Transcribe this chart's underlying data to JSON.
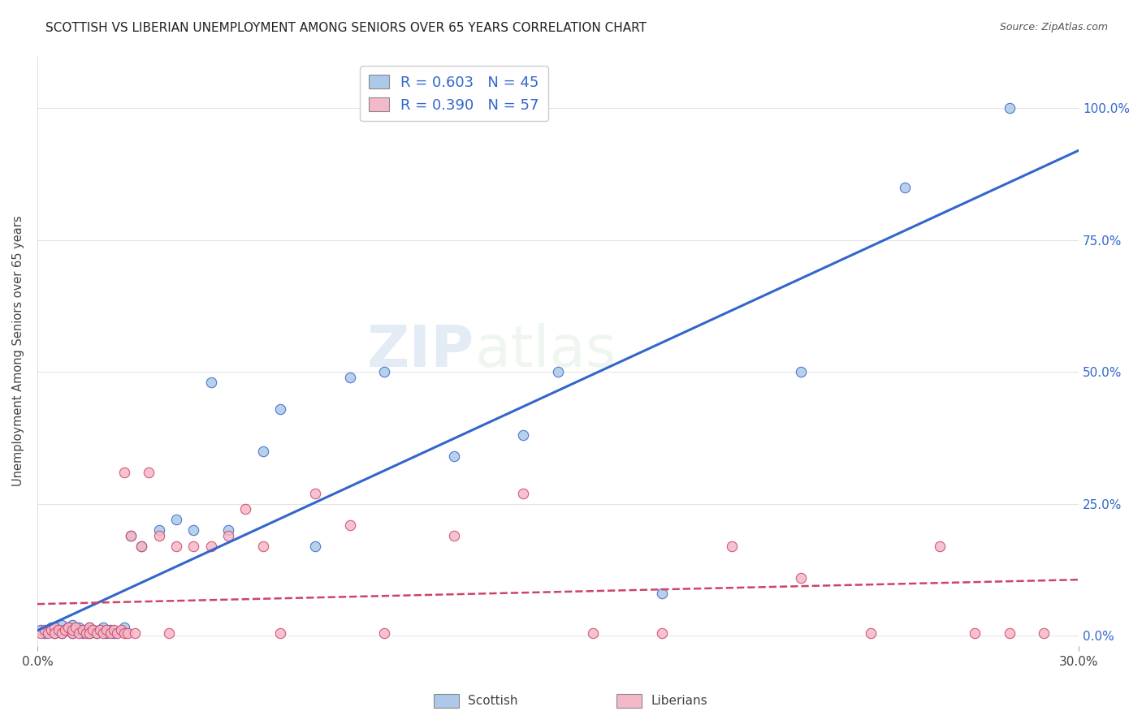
{
  "title": "SCOTTISH VS LIBERIAN UNEMPLOYMENT AMONG SENIORS OVER 65 YEARS CORRELATION CHART",
  "source": "Source: ZipAtlas.com",
  "ylabel_label": "Unemployment Among Seniors over 65 years",
  "xlim": [
    0.0,
    0.3
  ],
  "ylim": [
    -0.02,
    1.1
  ],
  "scottish_R": 0.603,
  "scottish_N": 45,
  "liberian_R": 0.39,
  "liberian_N": 57,
  "scottish_color": "#adc8e8",
  "liberian_color": "#f5b8c8",
  "scottish_line_color": "#3366cc",
  "liberian_line_color": "#cc4466",
  "r_n_color": "#3366cc",
  "background_color": "#ffffff",
  "watermark_zip": "ZIP",
  "watermark_atlas": "atlas",
  "scottish_x": [
    0.001,
    0.002,
    0.003,
    0.004,
    0.005,
    0.006,
    0.007,
    0.007,
    0.008,
    0.009,
    0.01,
    0.01,
    0.011,
    0.012,
    0.013,
    0.014,
    0.015,
    0.015,
    0.016,
    0.017,
    0.018,
    0.019,
    0.02,
    0.021,
    0.022,
    0.025,
    0.027,
    0.03,
    0.035,
    0.04,
    0.045,
    0.05,
    0.055,
    0.065,
    0.07,
    0.08,
    0.09,
    0.1,
    0.12,
    0.14,
    0.15,
    0.18,
    0.22,
    0.25,
    0.28
  ],
  "scottish_y": [
    0.01,
    0.005,
    0.01,
    0.015,
    0.005,
    0.01,
    0.02,
    0.005,
    0.01,
    0.015,
    0.005,
    0.02,
    0.01,
    0.015,
    0.005,
    0.01,
    0.015,
    0.005,
    0.01,
    0.005,
    0.01,
    0.015,
    0.005,
    0.01,
    0.005,
    0.015,
    0.19,
    0.17,
    0.2,
    0.22,
    0.2,
    0.48,
    0.2,
    0.35,
    0.43,
    0.17,
    0.49,
    0.5,
    0.34,
    0.38,
    0.5,
    0.08,
    0.5,
    0.85,
    1.0
  ],
  "liberian_x": [
    0.001,
    0.002,
    0.003,
    0.004,
    0.005,
    0.005,
    0.006,
    0.007,
    0.008,
    0.009,
    0.01,
    0.01,
    0.011,
    0.012,
    0.013,
    0.014,
    0.015,
    0.015,
    0.016,
    0.017,
    0.018,
    0.019,
    0.02,
    0.021,
    0.022,
    0.023,
    0.024,
    0.025,
    0.025,
    0.026,
    0.027,
    0.028,
    0.03,
    0.032,
    0.035,
    0.038,
    0.04,
    0.045,
    0.05,
    0.055,
    0.06,
    0.065,
    0.07,
    0.08,
    0.09,
    0.1,
    0.12,
    0.14,
    0.16,
    0.18,
    0.2,
    0.22,
    0.24,
    0.26,
    0.27,
    0.28,
    0.29
  ],
  "liberian_y": [
    0.005,
    0.01,
    0.005,
    0.01,
    0.015,
    0.005,
    0.01,
    0.005,
    0.01,
    0.015,
    0.005,
    0.01,
    0.015,
    0.005,
    0.01,
    0.005,
    0.015,
    0.005,
    0.01,
    0.005,
    0.01,
    0.005,
    0.01,
    0.005,
    0.01,
    0.005,
    0.01,
    0.005,
    0.31,
    0.005,
    0.19,
    0.005,
    0.17,
    0.31,
    0.19,
    0.005,
    0.17,
    0.17,
    0.17,
    0.19,
    0.24,
    0.17,
    0.005,
    0.27,
    0.21,
    0.005,
    0.19,
    0.27,
    0.005,
    0.005,
    0.17,
    0.11,
    0.005,
    0.17,
    0.005,
    0.005,
    0.005
  ],
  "legend_label_scottish": "Scottish",
  "legend_label_liberian": "Liberians"
}
